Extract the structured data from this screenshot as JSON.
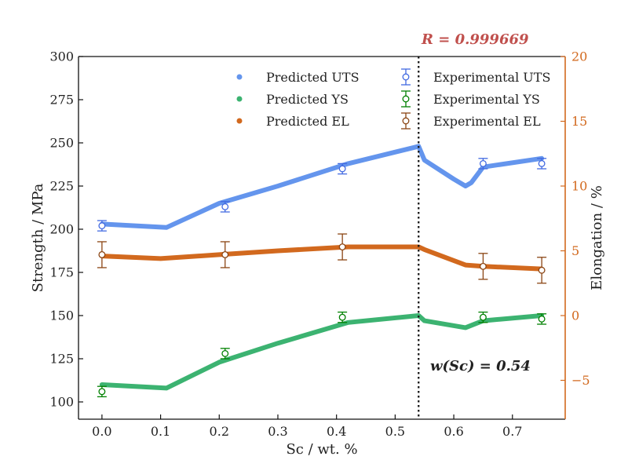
{
  "chart_data": {
    "type": "line",
    "x_axis": {
      "label": "Sc / wt. %",
      "range": [
        -0.04,
        0.79
      ],
      "ticks": [
        0.0,
        0.1,
        0.2,
        0.3,
        0.4,
        0.5,
        0.6,
        0.7
      ],
      "tick_labels": [
        "0.0",
        "0.1",
        "0.2",
        "0.3",
        "0.4",
        "0.5",
        "0.6",
        "0.7"
      ]
    },
    "y_axis_left": {
      "label": "Strength / MPa",
      "range": [
        90,
        300
      ],
      "ticks": [
        100,
        125,
        150,
        175,
        200,
        225,
        250,
        275,
        300
      ],
      "tick_labels": [
        "100",
        "125",
        "150",
        "175",
        "200",
        "225",
        "250",
        "275",
        "300"
      ]
    },
    "y_axis_right": {
      "label": "Elongation / %",
      "range": [
        -8,
        20
      ],
      "ticks": [
        -5,
        0,
        5,
        10,
        15,
        20
      ],
      "tick_labels": [
        "−5",
        "0",
        "5",
        "10",
        "15",
        "20"
      ],
      "color": "#d2691e"
    },
    "predicted": [
      {
        "name": "Predicted UTS",
        "axis": "left",
        "color": "#6495ed",
        "x": [
          0.0,
          0.11,
          0.2,
          0.3,
          0.42,
          0.54,
          0.55,
          0.6,
          0.62,
          0.63,
          0.65,
          0.75
        ],
        "y": [
          203,
          201,
          215,
          225,
          238,
          248,
          240,
          229,
          225,
          227,
          236,
          241
        ]
      },
      {
        "name": "Predicted YS",
        "axis": "left",
        "color": "#3cb371",
        "x": [
          0.0,
          0.11,
          0.2,
          0.3,
          0.42,
          0.54,
          0.55,
          0.62,
          0.65,
          0.75
        ],
        "y": [
          110,
          108,
          123,
          134,
          146,
          150,
          147,
          143,
          147,
          150
        ]
      },
      {
        "name": "Predicted EL",
        "axis": "right",
        "color": "#d2691e",
        "x": [
          0.0,
          0.1,
          0.2,
          0.3,
          0.42,
          0.54,
          0.55,
          0.62,
          0.65,
          0.75
        ],
        "y": [
          4.6,
          4.4,
          4.7,
          5.0,
          5.3,
          5.3,
          5.1,
          3.9,
          3.8,
          3.6
        ]
      }
    ],
    "experimental": [
      {
        "name": "Experimental UTS",
        "axis": "left",
        "color": "#4169e1",
        "x": [
          0.0,
          0.21,
          0.41,
          0.65,
          0.75
        ],
        "y": [
          202,
          213,
          235,
          238,
          238
        ],
        "err": [
          3,
          3,
          3,
          3,
          3
        ]
      },
      {
        "name": "Experimental YS",
        "axis": "left",
        "color": "#008000",
        "x": [
          0.0,
          0.21,
          0.41,
          0.65,
          0.75
        ],
        "y": [
          106,
          128,
          149,
          149,
          148
        ],
        "err": [
          3,
          3,
          3,
          3,
          3
        ]
      },
      {
        "name": "Experimental EL",
        "axis": "right",
        "color": "#8b4513",
        "x": [
          0.0,
          0.21,
          0.41,
          0.65,
          0.75
        ],
        "y": [
          4.7,
          4.7,
          5.3,
          3.8,
          3.5
        ],
        "err": [
          1.0,
          1.0,
          1.0,
          1.0,
          1.0
        ]
      }
    ],
    "vline_x": 0.54,
    "annotations": [
      {
        "id": "r-value",
        "text": "R = 0.999669",
        "color": "#c0504d"
      },
      {
        "id": "w-sc",
        "text": "w(Sc) = 0.54",
        "color": "#222222"
      }
    ],
    "legend": {
      "placement": "top-center",
      "columns": 2
    },
    "grid": false
  }
}
